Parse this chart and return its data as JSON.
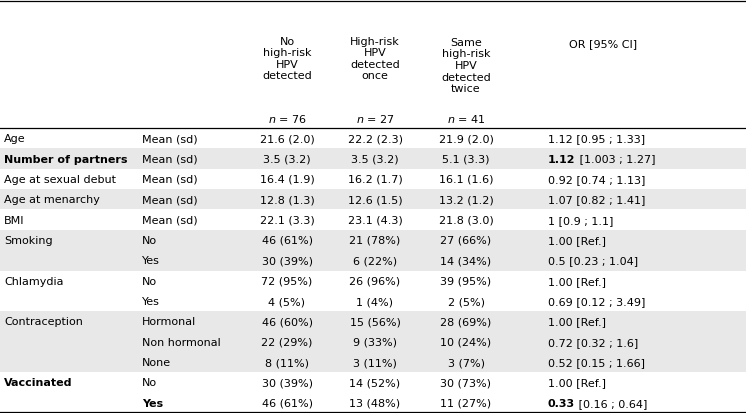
{
  "rows": [
    {
      "col0": "Age",
      "col1": "Mean (sd)",
      "col2": "21.6 (2.0)",
      "col3": "22.2 (2.3)",
      "col4": "21.9 (2.0)",
      "col5": "1.12 [0.95 ; 1.33]",
      "bold0": false,
      "bold1": false,
      "bold5": false,
      "bold5_prefix": "",
      "shaded": false
    },
    {
      "col0": "Number of partners",
      "col1": "Mean (sd)",
      "col2": "3.5 (3.2)",
      "col3": "3.5 (3.2)",
      "col4": "5.1 (3.3)",
      "col5": "1.12 [1.003 ; 1.27]",
      "bold0": true,
      "bold1": false,
      "bold5": true,
      "bold5_prefix": "1.12",
      "shaded": true
    },
    {
      "col0": "Age at sexual debut",
      "col1": "Mean (sd)",
      "col2": "16.4 (1.9)",
      "col3": "16.2 (1.7)",
      "col4": "16.1 (1.6)",
      "col5": "0.92 [0.74 ; 1.13]",
      "bold0": false,
      "bold1": false,
      "bold5": false,
      "bold5_prefix": "",
      "shaded": false
    },
    {
      "col0": "Age at menarchy",
      "col1": "Mean (sd)",
      "col2": "12.8 (1.3)",
      "col3": "12.6 (1.5)",
      "col4": "13.2 (1.2)",
      "col5": "1.07 [0.82 ; 1.41]",
      "bold0": false,
      "bold1": false,
      "bold5": false,
      "bold5_prefix": "",
      "shaded": true
    },
    {
      "col0": "BMI",
      "col1": "Mean (sd)",
      "col2": "22.1 (3.3)",
      "col3": "23.1 (4.3)",
      "col4": "21.8 (3.0)",
      "col5": "1 [0.9 ; 1.1]",
      "bold0": false,
      "bold1": false,
      "bold5": false,
      "bold5_prefix": "",
      "shaded": false
    },
    {
      "col0": "Smoking",
      "col1": "No",
      "col2": "46 (61%)",
      "col3": "21 (78%)",
      "col4": "27 (66%)",
      "col5": "1.00 [Ref.]",
      "bold0": false,
      "bold1": false,
      "bold5": false,
      "bold5_prefix": "",
      "shaded": true
    },
    {
      "col0": "",
      "col1": "Yes",
      "col2": "30 (39%)",
      "col3": "6 (22%)",
      "col4": "14 (34%)",
      "col5": "0.5 [0.23 ; 1.04]",
      "bold0": false,
      "bold1": false,
      "bold5": false,
      "bold5_prefix": "",
      "shaded": true
    },
    {
      "col0": "Chlamydia",
      "col1": "No",
      "col2": "72 (95%)",
      "col3": "26 (96%)",
      "col4": "39 (95%)",
      "col5": "1.00 [Ref.]",
      "bold0": false,
      "bold1": false,
      "bold5": false,
      "bold5_prefix": "",
      "shaded": false
    },
    {
      "col0": "",
      "col1": "Yes",
      "col2": "4 (5%)",
      "col3": "1 (4%)",
      "col4": "2 (5%)",
      "col5": "0.69 [0.12 ; 3.49]",
      "bold0": false,
      "bold1": false,
      "bold5": false,
      "bold5_prefix": "",
      "shaded": false
    },
    {
      "col0": "Contraception",
      "col1": "Hormonal",
      "col2": "46 (60%)",
      "col3": "15 (56%)",
      "col4": "28 (69%)",
      "col5": "1.00 [Ref.]",
      "bold0": false,
      "bold1": false,
      "bold5": false,
      "bold5_prefix": "",
      "shaded": true
    },
    {
      "col0": "",
      "col1": "Non hormonal",
      "col2": "22 (29%)",
      "col3": "9 (33%)",
      "col4": "10 (24%)",
      "col5": "0.72 [0.32 ; 1.6]",
      "bold0": false,
      "bold1": false,
      "bold5": false,
      "bold5_prefix": "",
      "shaded": true
    },
    {
      "col0": "",
      "col1": "None",
      "col2": "8 (11%)",
      "col3": "3 (11%)",
      "col4": "3 (7%)",
      "col5": "0.52 [0.15 ; 1.66]",
      "bold0": false,
      "bold1": false,
      "bold5": false,
      "bold5_prefix": "",
      "shaded": true
    },
    {
      "col0": "Vaccinated",
      "col1": "No",
      "col2": "30 (39%)",
      "col3": "14 (52%)",
      "col4": "30 (73%)",
      "col5": "1.00 [Ref.]",
      "bold0": true,
      "bold1": false,
      "bold5": false,
      "bold5_prefix": "",
      "shaded": false
    },
    {
      "col0": "",
      "col1": "Yes",
      "col2": "46 (61%)",
      "col3": "13 (48%)",
      "col4": "11 (27%)",
      "col5": "0.33 [0.16 ; 0.64]",
      "bold0": false,
      "bold1": true,
      "bold5": true,
      "bold5_prefix": "0.33",
      "shaded": false
    }
  ],
  "shaded_color": "#e8e8e8",
  "bg_color": "#ffffff",
  "text_color": "#000000",
  "font_size": 8.0,
  "header_font_size": 8.0
}
